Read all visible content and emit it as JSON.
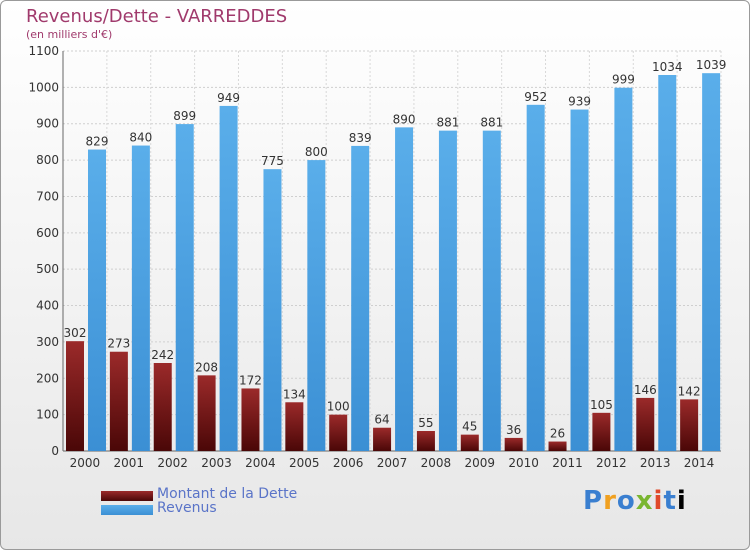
{
  "chart_data": {
    "type": "bar",
    "title": "Revenus/Dette - VARREDDES",
    "subtitle": "(en milliers d'€)",
    "categories": [
      "2000",
      "2001",
      "2002",
      "2003",
      "2004",
      "2005",
      "2006",
      "2007",
      "2008",
      "2009",
      "2010",
      "2011",
      "2012",
      "2013",
      "2014"
    ],
    "series": [
      {
        "name": "Montant de la Dette",
        "color": "#7a1414",
        "values": [
          302,
          273,
          242,
          208,
          172,
          134,
          100,
          64,
          55,
          45,
          36,
          26,
          105,
          146,
          142
        ]
      },
      {
        "name": "Revenus",
        "color": "#4fa3e3",
        "values": [
          829,
          840,
          899,
          949,
          775,
          800,
          839,
          890,
          881,
          881,
          952,
          939,
          999,
          1034,
          1039
        ]
      }
    ],
    "ylim": [
      0,
      1100
    ],
    "yticks": [
      0,
      100,
      200,
      300,
      400,
      500,
      600,
      700,
      800,
      900,
      1000,
      1100
    ],
    "grid": true,
    "legend_position": "bottom-left"
  },
  "logo": {
    "letters": [
      "P",
      "r",
      "o",
      "x",
      "i",
      "t",
      "i"
    ]
  }
}
